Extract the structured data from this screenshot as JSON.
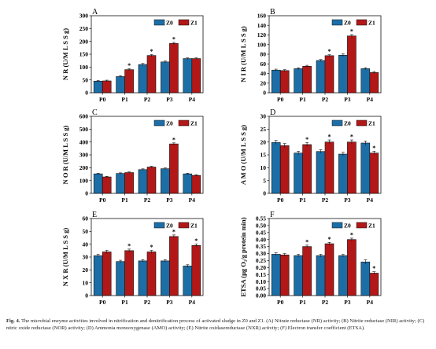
{
  "caption": {
    "label": "Fig. 4.",
    "text": "The microbial enzyme activities involved in nitrification and denitrification process of activated sludge in Z0 and Z1. (A) Nitrate reductase (NR) activity; (B) Nitrite reductase (NIR) activity; (C) nitric oxide reductase (NOR) activity; (D) Ammonia monooxygenase (AMO) activity; (E) Nitrite oxidasereductase (NXR) activity; (F) Electron transfer coefficient (ETSA)."
  },
  "colors": {
    "Z0": "#1f78b4",
    "Z1": "#c01a1a"
  },
  "chart_data": [
    {
      "panel": "A",
      "type": "bar",
      "categories": [
        "P0",
        "P1",
        "P2",
        "P3",
        "P4"
      ],
      "ylabel": "N R (U/M L S S g)",
      "ylim": [
        0,
        300
      ],
      "yticks": [
        0,
        50,
        100,
        150,
        200,
        250,
        300
      ],
      "legend": "top-right",
      "series": [
        {
          "name": "Z0",
          "values": [
            45,
            63,
            110,
            120,
            133
          ],
          "errors": [
            3,
            3,
            4,
            4,
            3
          ]
        },
        {
          "name": "Z1",
          "values": [
            46,
            90,
            145,
            192,
            133
          ],
          "errors": [
            3,
            4,
            4,
            4,
            3
          ]
        }
      ],
      "stars": [
        false,
        true,
        true,
        true,
        false
      ]
    },
    {
      "panel": "B",
      "type": "bar",
      "categories": [
        "P0",
        "P1",
        "P2",
        "P3",
        "P4"
      ],
      "ylabel": "N I R (U/M L S S g)",
      "ylim": [
        0,
        160
      ],
      "yticks": [
        0,
        20,
        40,
        60,
        80,
        100,
        120,
        140,
        160
      ],
      "legend": "top-right",
      "series": [
        {
          "name": "Z0",
          "values": [
            47,
            50,
            67,
            78,
            50
          ],
          "errors": [
            2,
            2,
            2,
            3,
            2
          ]
        },
        {
          "name": "Z1",
          "values": [
            46,
            55,
            77,
            118,
            42
          ],
          "errors": [
            2,
            2,
            2,
            3,
            2
          ]
        }
      ],
      "stars": [
        false,
        false,
        true,
        true,
        false
      ]
    },
    {
      "panel": "C",
      "type": "bar",
      "categories": [
        "P0",
        "P1",
        "P2",
        "P3",
        "P4"
      ],
      "ylabel": "N O R (U/M L S S g)",
      "ylim": [
        0,
        600
      ],
      "yticks": [
        0,
        100,
        200,
        300,
        400,
        500,
        600
      ],
      "legend": "top-right",
      "series": [
        {
          "name": "Z0",
          "values": [
            152,
            155,
            185,
            192,
            152
          ],
          "errors": [
            5,
            5,
            6,
            6,
            5
          ]
        },
        {
          "name": "Z1",
          "values": [
            128,
            162,
            205,
            385,
            140
          ],
          "errors": [
            5,
            5,
            6,
            8,
            5
          ]
        }
      ],
      "stars": [
        false,
        false,
        false,
        true,
        false
      ]
    },
    {
      "panel": "D",
      "type": "bar",
      "categories": [
        "P0",
        "P1",
        "P2",
        "P3",
        "P4"
      ],
      "ylabel": "A M O (U/M L S S g)",
      "ylim": [
        0,
        30
      ],
      "yticks": [
        0,
        5,
        10,
        15,
        20,
        25,
        30
      ],
      "legend": "top-right",
      "series": [
        {
          "name": "Z0",
          "values": [
            19.8,
            15.7,
            16.3,
            15.3,
            19.6
          ],
          "errors": [
            0.8,
            0.7,
            0.7,
            0.7,
            0.8
          ]
        },
        {
          "name": "Z1",
          "values": [
            18.6,
            19.0,
            20.0,
            20.0,
            15.7
          ],
          "errors": [
            0.8,
            0.8,
            0.8,
            0.8,
            0.7
          ]
        }
      ],
      "stars": [
        false,
        true,
        true,
        true,
        true
      ]
    },
    {
      "panel": "E",
      "type": "bar",
      "categories": [
        "P0",
        "P1",
        "P2",
        "P3",
        "P4"
      ],
      "ylabel": "N X R (U/M L S S g)",
      "ylim": [
        0,
        60
      ],
      "yticks": [
        0,
        10,
        20,
        30,
        40,
        50,
        60
      ],
      "legend": "top-right",
      "series": [
        {
          "name": "Z0",
          "values": [
            31,
            26.5,
            27,
            27,
            23
          ],
          "errors": [
            1.2,
            1.0,
            1.0,
            1.0,
            1.0
          ]
        },
        {
          "name": "Z1",
          "values": [
            34,
            35,
            34,
            46,
            39
          ],
          "errors": [
            1.2,
            1.2,
            1.2,
            1.2,
            1.2
          ]
        }
      ],
      "stars": [
        false,
        true,
        true,
        true,
        true
      ]
    },
    {
      "panel": "F",
      "type": "bar",
      "categories": [
        "P0",
        "P1",
        "P2",
        "P3",
        "P4"
      ],
      "ylabel": "ETSA (μg O₂/g protein min)",
      "ylim": [
        0,
        0.55
      ],
      "yticks": [
        0,
        0.05,
        0.1,
        0.15,
        0.2,
        0.25,
        0.3,
        0.35,
        0.4,
        0.45,
        0.5,
        0.55
      ],
      "legend": "top-right",
      "series": [
        {
          "name": "Z0",
          "values": [
            0.295,
            0.285,
            0.285,
            0.285,
            0.24
          ],
          "errors": [
            0.01,
            0.01,
            0.01,
            0.01,
            0.015
          ]
        },
        {
          "name": "Z1",
          "values": [
            0.29,
            0.35,
            0.37,
            0.4,
            0.16
          ],
          "errors": [
            0.01,
            0.01,
            0.01,
            0.01,
            0.01
          ]
        }
      ],
      "stars": [
        false,
        true,
        true,
        true,
        true
      ]
    }
  ]
}
